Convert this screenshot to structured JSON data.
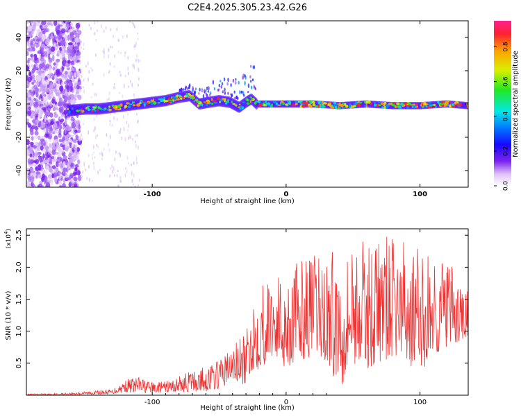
{
  "chart_data": [
    {
      "type": "heatmap",
      "title": "C2E4.2025.305.23.42.G26",
      "xlabel": "Height of straight line (km)",
      "ylabel": "Frequency (Hz)",
      "xlim": [
        -194,
        136
      ],
      "ylim": [
        -50,
        50
      ],
      "xticks": [
        -100,
        0,
        100
      ],
      "yticks": [
        -40,
        -20,
        0,
        20,
        40
      ],
      "ridge": {
        "x": [
          -163,
          -150,
          -140,
          -130,
          -120,
          -110,
          -100,
          -90,
          -80,
          -72,
          -65,
          -58,
          -50,
          -42,
          -35,
          -30,
          -26,
          -22,
          -15,
          -5,
          5,
          20,
          40,
          60,
          80,
          100,
          120,
          136
        ],
        "y": [
          -4,
          -3,
          -3,
          -2,
          -1,
          0,
          1,
          2,
          4,
          5,
          0,
          1,
          2,
          1,
          -2,
          1,
          3,
          0,
          0,
          0,
          0,
          0,
          -1,
          0,
          -1,
          -1,
          0,
          -1
        ]
      },
      "colorbar": {
        "label": "Normalized spectral amplitude",
        "range": [
          0,
          0.95
        ],
        "ticks": [
          "0.0",
          "0.2",
          "0.4",
          "0.6",
          "0.8"
        ]
      }
    },
    {
      "type": "line",
      "xlabel": "Height of straight line (km)",
      "ylabel": "SNR (10 * v/v)",
      "yscale_label": "(x10",
      "yscale_exp": "4",
      "xlim": [
        -194,
        136
      ],
      "ylim": [
        0,
        2.6
      ],
      "xticks": [
        -100,
        0,
        100
      ],
      "yticks": [
        "0.5",
        "1.0",
        "1.5",
        "2.0",
        "2.5"
      ],
      "series": [
        {
          "name": "SNR",
          "color": "#ee3030",
          "x": [
            -194,
            -170,
            -150,
            -130,
            -120,
            -110,
            -100,
            -90,
            -80,
            -70,
            -60,
            -50,
            -40,
            -30,
            -25,
            -20,
            -15,
            -10,
            -5,
            0,
            10,
            20,
            30,
            40,
            50,
            60,
            70,
            80,
            90,
            100,
            110,
            120,
            130,
            136
          ],
          "envelope": [
            0.02,
            0.03,
            0.06,
            0.09,
            0.25,
            0.3,
            0.2,
            0.22,
            0.3,
            0.4,
            0.45,
            0.55,
            0.8,
            0.95,
            1.5,
            1.9,
            1.8,
            1.9,
            1.9,
            2.0,
            2.1,
            2.2,
            2.2,
            2.35,
            2.4,
            2.4,
            2.5,
            2.45,
            2.4,
            2.3,
            2.2,
            2.2,
            1.7,
            1.7
          ],
          "floor": [
            0,
            0,
            0.01,
            0.02,
            0.05,
            0.03,
            0.04,
            0.04,
            0.05,
            0.05,
            0.06,
            0.1,
            0.2,
            0.15,
            0.4,
            0.4,
            0.5,
            0.6,
            0.5,
            0.4,
            0.55,
            0.6,
            0.5,
            0.1,
            0.5,
            0.4,
            0.5,
            0.6,
            0.5,
            0.3,
            0.6,
            0.7,
            0.8,
            0.9
          ]
        }
      ]
    }
  ]
}
